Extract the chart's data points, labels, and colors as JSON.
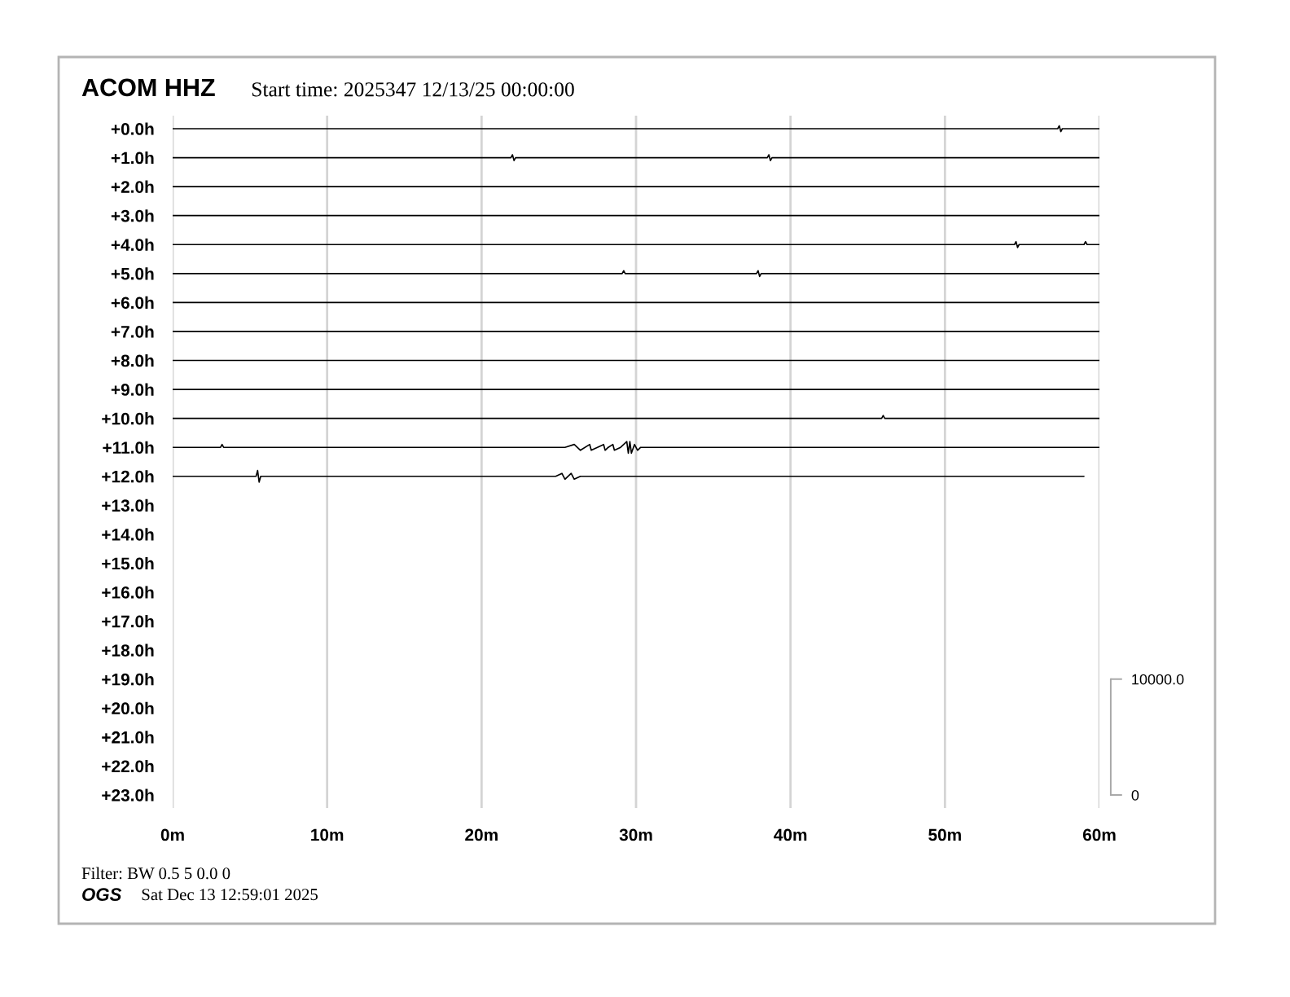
{
  "chart_data": {
    "type": "line",
    "title": "ACOM HHZ",
    "subtitle": "Start time: 2025347 12/13/25 00:00:00",
    "annotations": [
      "Filter: BW 0.5 5 0.0 0",
      "OGS",
      "Sat Dec 13 12:59:01 2025"
    ],
    "xlim": [
      0,
      60
    ],
    "xticks": [
      {
        "value": 0,
        "label": "0m"
      },
      {
        "value": 10,
        "label": "10m"
      },
      {
        "value": 20,
        "label": "20m"
      },
      {
        "value": 30,
        "label": "30m"
      },
      {
        "value": 40,
        "label": "40m"
      },
      {
        "value": 50,
        "label": "50m"
      },
      {
        "value": 60,
        "label": "60m"
      }
    ],
    "ylim": [
      23.45,
      -0.45
    ],
    "yticks": [
      {
        "value": 0,
        "label": "+0.0h"
      },
      {
        "value": 1,
        "label": "+1.0h"
      },
      {
        "value": 2,
        "label": "+2.0h"
      },
      {
        "value": 3,
        "label": "+3.0h"
      },
      {
        "value": 4,
        "label": "+4.0h"
      },
      {
        "value": 5,
        "label": "+5.0h"
      },
      {
        "value": 6,
        "label": "+6.0h"
      },
      {
        "value": 7,
        "label": "+7.0h"
      },
      {
        "value": 8,
        "label": "+8.0h"
      },
      {
        "value": 9,
        "label": "+9.0h"
      },
      {
        "value": 10,
        "label": "+10.0h"
      },
      {
        "value": 11,
        "label": "+11.0h"
      },
      {
        "value": 12,
        "label": "+12.0h"
      },
      {
        "value": 13,
        "label": "+13.0h"
      },
      {
        "value": 14,
        "label": "+14.0h"
      },
      {
        "value": 15,
        "label": "+15.0h"
      },
      {
        "value": 16,
        "label": "+16.0h"
      },
      {
        "value": 17,
        "label": "+17.0h"
      },
      {
        "value": 18,
        "label": "+18.0h"
      },
      {
        "value": 19,
        "label": "+19.0h"
      },
      {
        "value": 20,
        "label": "+20.0h"
      },
      {
        "value": 21,
        "label": "+21.0h"
      },
      {
        "value": 22,
        "label": "+22.0h"
      },
      {
        "value": 23,
        "label": "+23.0h"
      }
    ],
    "y2lim": [
      -1125,
      58625
    ],
    "y2ticks": [
      0,
      {
        "value": 10000,
        "label": "10000.0"
      }
    ],
    "grid": "x",
    "series": [
      {
        "color": "#000000",
        "x": [
          0,
          57.3,
          57.4,
          57.5,
          57.6,
          60
        ],
        "values": [
          0,
          0,
          -0.1,
          0.1,
          0,
          0
        ]
      },
      {
        "color": "#000000",
        "x": [
          0,
          21.9,
          22.0,
          22.1,
          22.2,
          38.5,
          38.6,
          38.7,
          38.8,
          60
        ],
        "values": [
          1,
          1,
          0.9,
          1.1,
          1,
          1,
          0.9,
          1.1,
          1,
          1
        ]
      },
      {
        "color": "#000000",
        "x": [
          0,
          60
        ],
        "values": [
          2,
          2
        ]
      },
      {
        "color": "#000000",
        "x": [
          0,
          60
        ],
        "values": [
          3,
          3
        ]
      },
      {
        "color": "#000000",
        "x": [
          0,
          54.5,
          54.6,
          54.7,
          54.8,
          59.0,
          59.1,
          59.2,
          60
        ],
        "values": [
          4,
          4,
          3.9,
          4.1,
          4,
          4,
          3.9,
          4,
          4
        ]
      },
      {
        "color": "#000000",
        "x": [
          0,
          29.1,
          29.2,
          29.3,
          37.8,
          37.9,
          38.0,
          38.1,
          60
        ],
        "values": [
          5,
          5,
          4.9,
          5,
          5,
          4.9,
          5.1,
          5,
          5
        ]
      },
      {
        "color": "#000000",
        "x": [
          0,
          60
        ],
        "values": [
          6,
          6
        ]
      },
      {
        "color": "#000000",
        "x": [
          0,
          60
        ],
        "values": [
          7,
          7
        ]
      },
      {
        "color": "#000000",
        "x": [
          0,
          60
        ],
        "values": [
          8,
          8
        ]
      },
      {
        "color": "#000000",
        "x": [
          0,
          60
        ],
        "values": [
          9,
          9
        ]
      },
      {
        "color": "#000000",
        "x": [
          0,
          45.9,
          46.0,
          46.1,
          60
        ],
        "values": [
          10,
          10,
          9.9,
          10,
          10
        ]
      },
      {
        "color": "#000000",
        "x": [
          0,
          3.1,
          3.2,
          3.3,
          25.4,
          26.0,
          26.4,
          27.0,
          27.1,
          27.5,
          27.9,
          28.0,
          28.2,
          28.5,
          28.6,
          29.0,
          29.4,
          29.5,
          29.6,
          29.7,
          29.9,
          30.1,
          30.3,
          60
        ],
        "values": [
          11,
          11,
          10.9,
          11,
          11,
          10.9,
          11.1,
          10.9,
          11.1,
          11,
          10.9,
          11.1,
          11,
          10.9,
          11.1,
          11,
          10.8,
          11.2,
          10.8,
          11.2,
          10.9,
          11.1,
          11,
          11
        ]
      },
      {
        "color": "#000000",
        "x": [
          0,
          5.4,
          5.5,
          5.6,
          5.7,
          24.8,
          25.2,
          25.4,
          25.8,
          26.0,
          26.4,
          59.0
        ],
        "values": [
          12,
          12,
          11.8,
          12.2,
          12,
          12,
          11.9,
          12.1,
          11.9,
          12.1,
          12,
          12
        ]
      }
    ]
  }
}
